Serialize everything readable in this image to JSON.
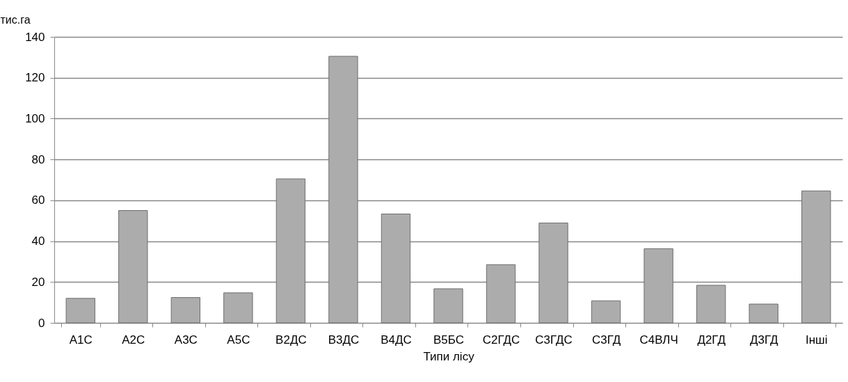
{
  "chart_data": {
    "type": "bar",
    "ylabel": "тис.га",
    "xlabel": "Типи лісу",
    "categories": [
      "А1С",
      "А2С",
      "А3С",
      "А5С",
      "В2ДС",
      "В3ДС",
      "В4ДС",
      "В5БС",
      "С2ГДС",
      "С3ГДС",
      "С3ГД",
      "С4ВЛЧ",
      "Д2ГД",
      "Д3ГД",
      "Інші"
    ],
    "values": [
      12,
      55,
      12.4,
      14.7,
      70.5,
      130.5,
      53.3,
      16.7,
      28.5,
      48.9,
      10.8,
      36.3,
      18.4,
      9.2,
      64.6
    ],
    "color": "#acacac",
    "ylim": [
      0,
      140
    ],
    "yticks": [
      0,
      20,
      40,
      60,
      80,
      100,
      120,
      140
    ],
    "grid": "y"
  }
}
